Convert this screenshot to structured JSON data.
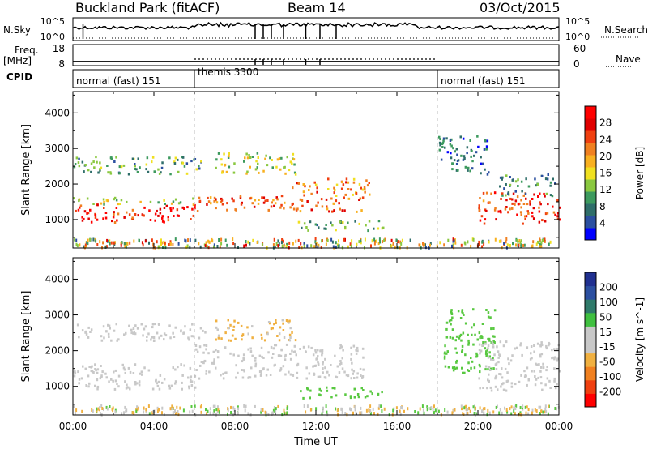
{
  "header": {
    "title": "Buckland Park (fitACF)",
    "beam": "Beam 14",
    "date": "03/Oct/2015"
  },
  "strips": {
    "nsky_label": "N.Sky",
    "nsky_ticks": [
      "10^5",
      "10^0"
    ],
    "nsearch_label": "N.Search",
    "nsearch_ticks": [
      "10^5",
      "10^0"
    ],
    "freq_label": "Freq.",
    "freq_unit": "[MHz]",
    "freq_ticks": [
      "18",
      "8"
    ],
    "nave_label": "Nave",
    "nave_ticks": [
      "60",
      "0"
    ],
    "cpid_label": "CPID"
  },
  "cpid_segments": [
    {
      "start_hour": 0,
      "label": "normal (fast) 151"
    },
    {
      "start_hour": 6,
      "label": "themis 3300"
    },
    {
      "start_hour": 18,
      "label": "normal (fast) 151"
    }
  ],
  "chart_data": [
    {
      "type": "heatmap",
      "title": "",
      "ylabel": "Slant Range [km]",
      "xlabel": "",
      "xlim_hours": [
        0,
        24
      ],
      "ylim": [
        200,
        4600
      ],
      "yticks": [
        1000,
        2000,
        3000,
        4000
      ],
      "colorbar": {
        "label": "Power [dB]",
        "ticks": [
          "28",
          "24",
          "20",
          "16",
          "12",
          "8",
          "4"
        ],
        "colors": [
          "#0000ff",
          "#2b4fa0",
          "#2f6e6a",
          "#3d9a5e",
          "#8ac840",
          "#f0e020",
          "#f8b020",
          "#f08020",
          "#f04010",
          "#e00000",
          "#ff0000"
        ]
      },
      "regions": [
        {
          "t0": 0,
          "t1": 6,
          "r0": 950,
          "r1": 1450,
          "power_db": 28
        },
        {
          "t0": 0,
          "t1": 6,
          "r0": 1450,
          "r1": 1650,
          "power_db": 16
        },
        {
          "t0": 0,
          "t1": 6.5,
          "r0": 2300,
          "r1": 2800,
          "power_db": 12
        },
        {
          "t0": 6,
          "t1": 14.3,
          "r0": 1250,
          "r1": 1700,
          "power_db": 24
        },
        {
          "t0": 10.8,
          "t1": 14.6,
          "r0": 1700,
          "r1": 2200,
          "power_db": 22
        },
        {
          "t0": 7,
          "t1": 11,
          "r0": 2300,
          "r1": 2900,
          "power_db": 16
        },
        {
          "t0": 11,
          "t1": 15.3,
          "r0": 700,
          "r1": 1000,
          "power_db": 12
        },
        {
          "t0": 18,
          "t1": 20.5,
          "r0": 2300,
          "r1": 3400,
          "power_db": 8
        },
        {
          "t0": 20,
          "t1": 24,
          "r0": 900,
          "r1": 1800,
          "power_db": 26
        },
        {
          "t0": 21,
          "t1": 23.8,
          "r0": 1700,
          "r1": 2300,
          "power_db": 10
        }
      ]
    },
    {
      "type": "heatmap",
      "title": "",
      "ylabel": "Slant Range [km]",
      "xlabel": "Time UT",
      "x_tick_labels": [
        "00:00",
        "04:00",
        "08:00",
        "12:00",
        "16:00",
        "20:00",
        "00:00"
      ],
      "xlim_hours": [
        0,
        24
      ],
      "ylim": [
        200,
        4600
      ],
      "yticks": [
        1000,
        2000,
        3000,
        4000
      ],
      "colorbar": {
        "label": "Velocity [m s^-1]",
        "ticks": [
          "200",
          "100",
          "50",
          "15",
          "-15",
          "-50",
          "-100",
          "-200"
        ],
        "colors": [
          "#ff0000",
          "#f04010",
          "#f08020",
          "#f0b040",
          "#c8c8c8",
          "#c8c8c8",
          "#40c040",
          "#2f7a6a",
          "#2b4fa0",
          "#203090"
        ]
      },
      "regions": [
        {
          "t0": 0,
          "t1": 6,
          "r0": 950,
          "r1": 1650,
          "velocity": 0
        },
        {
          "t0": 0,
          "t1": 6.5,
          "r0": 2300,
          "r1": 2800,
          "velocity": 0
        },
        {
          "t0": 6,
          "t1": 14.3,
          "r0": 1250,
          "r1": 2200,
          "velocity": 0
        },
        {
          "t0": 7,
          "t1": 11,
          "r0": 2300,
          "r1": 2900,
          "velocity": -20
        },
        {
          "t0": 11,
          "t1": 15.3,
          "r0": 700,
          "r1": 1000,
          "velocity": 40
        },
        {
          "t0": 18.3,
          "t1": 20.8,
          "r0": 1400,
          "r1": 3200,
          "velocity": 40
        },
        {
          "t0": 20,
          "t1": 24,
          "r0": 900,
          "r1": 2300,
          "velocity": 0
        }
      ]
    }
  ]
}
